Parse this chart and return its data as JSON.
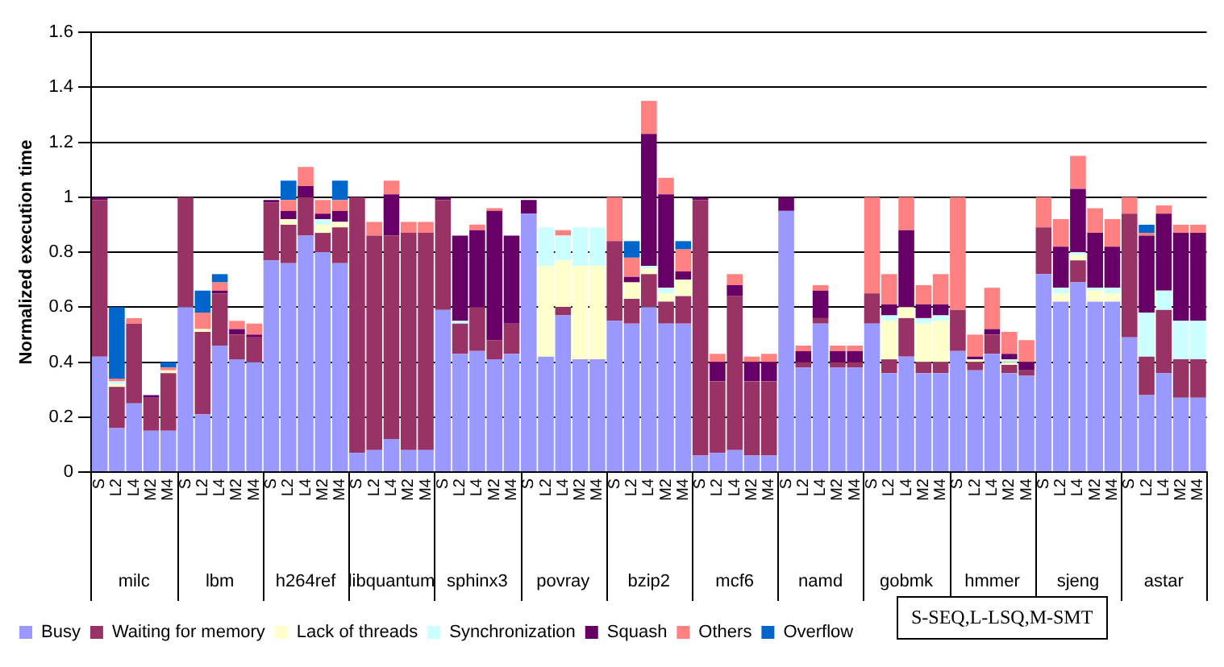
{
  "chart_data": {
    "type": "bar",
    "stacked": true,
    "ylabel": "Normalized execution time",
    "ylim": [
      0,
      1.6
    ],
    "yticks": [
      0,
      0.2,
      0.4,
      0.6,
      0.8,
      1,
      1.2,
      1.4,
      1.6
    ],
    "grid": "y",
    "legend": "bottom",
    "categories": [
      "S",
      "L2",
      "L4",
      "M2",
      "M4",
      "S",
      "L2",
      "L4",
      "M2",
      "M4",
      "S",
      "L2",
      "L4",
      "M2",
      "M4",
      "S",
      "L2",
      "L4",
      "M2",
      "M4",
      "S",
      "L2",
      "L4",
      "M2",
      "M4",
      "S",
      "L2",
      "L4",
      "M2",
      "M4",
      "S",
      "L2",
      "L4",
      "M2",
      "M4",
      "S",
      "L2",
      "L4",
      "M2",
      "M4",
      "S",
      "L2",
      "L4",
      "M2",
      "M4",
      "S",
      "L2",
      "L4",
      "M2",
      "M4",
      "S",
      "L2",
      "L4",
      "M2",
      "M4",
      "S",
      "L2",
      "L4",
      "M2",
      "M4",
      "S",
      "L2",
      "L4",
      "M2",
      "M4"
    ],
    "series": [
      {
        "name": "Busy",
        "color": "#9999ff",
        "values": [
          0.42,
          0.16,
          0.25,
          0.15,
          0.15,
          0.6,
          0.21,
          0.46,
          0.41,
          0.4,
          0.77,
          0.76,
          0.86,
          0.8,
          0.76,
          0.07,
          0.08,
          0.12,
          0.08,
          0.08,
          0.59,
          0.43,
          0.44,
          0.41,
          0.43,
          0.94,
          0.42,
          0.57,
          0.41,
          0.41,
          0.55,
          0.54,
          0.6,
          0.54,
          0.54,
          0.06,
          0.07,
          0.08,
          0.06,
          0.06,
          0.95,
          0.38,
          0.54,
          0.38,
          0.38,
          0.54,
          0.36,
          0.42,
          0.36,
          0.36,
          0.44,
          0.37,
          0.43,
          0.36,
          0.35,
          0.72,
          0.62,
          0.69,
          0.62,
          0.62,
          0.49,
          0.28,
          0.36,
          0.27,
          0.27
        ]
      },
      {
        "name": "Waiting for memory",
        "color": "#993366",
        "values": [
          0.57,
          0.15,
          0.29,
          0.12,
          0.21,
          0.4,
          0.3,
          0.19,
          0.09,
          0.09,
          0.21,
          0.14,
          0.14,
          0.07,
          0.13,
          0.93,
          0.78,
          0.74,
          0.79,
          0.79,
          0.4,
          0.11,
          0.16,
          0.07,
          0.11,
          0,
          0,
          0.03,
          0,
          0,
          0.29,
          0.09,
          0.12,
          0.08,
          0.1,
          0.93,
          0.26,
          0.56,
          0.27,
          0.27,
          0,
          0.02,
          0.02,
          0.02,
          0.02,
          0.11,
          0.05,
          0.14,
          0.04,
          0.04,
          0.15,
          0.03,
          0.07,
          0.03,
          0.02,
          0.17,
          0,
          0.08,
          0,
          0,
          0.45,
          0.14,
          0.23,
          0.14,
          0.14
        ]
      },
      {
        "name": "Lack of threads",
        "color": "#ffffcc",
        "values": [
          0,
          0.01,
          0,
          0,
          0.01,
          0,
          0.01,
          0,
          0,
          0,
          0,
          0.02,
          0,
          0.03,
          0.02,
          0,
          0,
          0,
          0,
          0,
          0,
          0,
          0,
          0,
          0,
          0,
          0.33,
          0.17,
          0.34,
          0.34,
          0,
          0.06,
          0.02,
          0.03,
          0.06,
          0,
          0,
          0,
          0,
          0,
          0,
          0,
          0,
          0,
          0,
          0,
          0.14,
          0.04,
          0.14,
          0.15,
          0,
          0.01,
          0,
          0.01,
          0,
          0,
          0.03,
          0.02,
          0.04,
          0.03,
          0,
          0,
          0,
          0,
          0
        ]
      },
      {
        "name": "Synchronization",
        "color": "#ccffff",
        "values": [
          0,
          0.01,
          0,
          0,
          0,
          0,
          0,
          0,
          0,
          0,
          0,
          0,
          0,
          0.02,
          0,
          0,
          0,
          0,
          0,
          0,
          0,
          0.01,
          0,
          0,
          0,
          0,
          0.14,
          0.09,
          0.14,
          0.14,
          0,
          0,
          0.01,
          0.02,
          0,
          0,
          0,
          0,
          0,
          0,
          0,
          0,
          0,
          0,
          0,
          0,
          0.02,
          0,
          0.02,
          0.02,
          0,
          0,
          0,
          0.01,
          0,
          0,
          0.02,
          0.01,
          0.01,
          0.02,
          0,
          0.16,
          0.07,
          0.14,
          0.14
        ]
      },
      {
        "name": "Squash",
        "color": "#660066",
        "values": [
          0.01,
          0,
          0,
          0.01,
          0,
          0,
          0,
          0.01,
          0.02,
          0.01,
          0.01,
          0.03,
          0.04,
          0.02,
          0.04,
          0,
          0,
          0.15,
          0,
          0,
          0.01,
          0.31,
          0.28,
          0.47,
          0.32,
          0.05,
          0,
          0,
          0,
          0,
          0,
          0.02,
          0.48,
          0.34,
          0.03,
          0.01,
          0.07,
          0.04,
          0.07,
          0.07,
          0.05,
          0.04,
          0.1,
          0.04,
          0.04,
          0,
          0.04,
          0.28,
          0.05,
          0.04,
          0,
          0.01,
          0.02,
          0.02,
          0.03,
          0,
          0.15,
          0.23,
          0.2,
          0.15,
          0,
          0.28,
          0.28,
          0.32,
          0.32
        ]
      },
      {
        "name": "Others",
        "color": "#ff8080",
        "values": [
          0,
          0.01,
          0.02,
          0,
          0.01,
          0,
          0.06,
          0.03,
          0.03,
          0.04,
          0,
          0.04,
          0.07,
          0.05,
          0.04,
          0,
          0.05,
          0.05,
          0.04,
          0.04,
          0,
          0,
          0.02,
          0.01,
          0,
          0,
          0,
          0.02,
          0,
          0,
          0.16,
          0.07,
          0.12,
          0.06,
          0.08,
          0,
          0.03,
          0.04,
          0.02,
          0.03,
          0,
          0.02,
          0.02,
          0.02,
          0.02,
          0.35,
          0.11,
          0.12,
          0.07,
          0.11,
          0.41,
          0.08,
          0.15,
          0.08,
          0.08,
          0.11,
          0.1,
          0.12,
          0.09,
          0.1,
          0.06,
          0.01,
          0.03,
          0.03,
          0.03
        ]
      },
      {
        "name": "Overflow",
        "color": "#0066cc",
        "values": [
          0,
          0.26,
          0,
          0,
          0.02,
          0,
          0.08,
          0.03,
          0,
          0,
          0,
          0.07,
          0,
          0,
          0.07,
          0,
          0,
          0,
          0,
          0,
          0,
          0,
          0,
          0,
          0,
          0,
          0,
          0,
          0,
          0,
          0,
          0.06,
          0,
          0,
          0.03,
          0,
          0,
          0,
          0,
          0,
          0,
          0,
          0,
          0,
          0,
          0,
          0,
          0,
          0,
          0,
          0,
          0,
          0,
          0,
          0,
          0,
          0,
          0,
          0,
          0,
          0,
          0.03,
          0,
          0,
          0
        ]
      }
    ],
    "annotations": [
      "milc",
      "lbm",
      "h264ref",
      "libquantum",
      "sphinx3",
      "povray",
      "bzip2",
      "mcf6",
      "namd",
      "gobmk",
      "hmmer",
      "sjeng",
      "astar",
      "S-SEQ,L-LSQ,M-SMT"
    ]
  }
}
